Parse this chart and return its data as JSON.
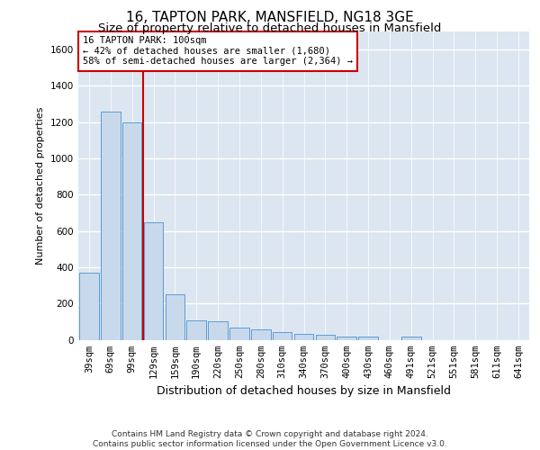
{
  "title1": "16, TAPTON PARK, MANSFIELD, NG18 3GE",
  "title2": "Size of property relative to detached houses in Mansfield",
  "xlabel": "Distribution of detached houses by size in Mansfield",
  "ylabel": "Number of detached properties",
  "footnote": "Contains HM Land Registry data © Crown copyright and database right 2024.\nContains public sector information licensed under the Open Government Licence v3.0.",
  "categories": [
    "39sqm",
    "69sqm",
    "99sqm",
    "129sqm",
    "159sqm",
    "190sqm",
    "220sqm",
    "250sqm",
    "280sqm",
    "310sqm",
    "340sqm",
    "370sqm",
    "400sqm",
    "430sqm",
    "460sqm",
    "491sqm",
    "521sqm",
    "551sqm",
    "581sqm",
    "611sqm",
    "641sqm"
  ],
  "values": [
    370,
    1260,
    1200,
    650,
    250,
    105,
    100,
    65,
    55,
    40,
    30,
    25,
    18,
    18,
    0,
    18,
    0,
    0,
    0,
    0,
    0
  ],
  "bar_color": "#c9d9ec",
  "bar_edge_color": "#5b9bd5",
  "vline_color": "#cc0000",
  "vline_pos": 2.5,
  "annotation_text": "16 TAPTON PARK: 100sqm\n← 42% of detached houses are smaller (1,680)\n58% of semi-detached houses are larger (2,364) →",
  "annotation_box_color": "#ffffff",
  "annotation_box_edge_color": "#cc0000",
  "ylim": [
    0,
    1700
  ],
  "yticks": [
    0,
    200,
    400,
    600,
    800,
    1000,
    1200,
    1400,
    1600
  ],
  "bg_color": "#dce6f1",
  "grid_color": "#ffffff",
  "title1_fontsize": 11,
  "title2_fontsize": 9.5,
  "ylabel_fontsize": 8,
  "xlabel_fontsize": 9,
  "tick_fontsize": 7.5,
  "footnote_fontsize": 6.5,
  "ann_fontsize": 7.5
}
